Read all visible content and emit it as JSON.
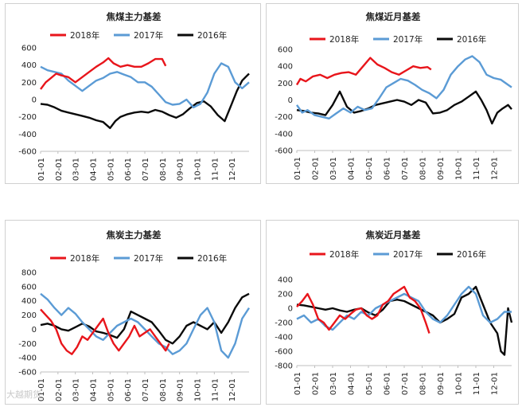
{
  "colors": {
    "s2018": "#e8151b",
    "s2017": "#5b9bd5",
    "s2016": "#0a0a0a",
    "axis": "#bfbfbf"
  },
  "watermark": "大越期货",
  "chart_data": [
    {
      "type": "line",
      "title": "焦煤主力基差",
      "ylim": [
        -600,
        600
      ],
      "yticks": [
        "600",
        "400",
        "200",
        "0",
        "-200",
        "-400",
        "-600"
      ],
      "categories": [
        "01-01",
        "02-01",
        "03-01",
        "04-01",
        "05-01",
        "06-01",
        "07-01",
        "08-01",
        "09-01",
        "10-01",
        "11-01",
        "12-01"
      ],
      "legend": "top",
      "series": [
        {
          "name": "2018年",
          "x": [
            0,
            0.3,
            0.6,
            0.9,
            1.2,
            1.6,
            2.0,
            2.4,
            2.8,
            3.2,
            3.6,
            3.9,
            4.2,
            4.6,
            5.0,
            5.4,
            5.8,
            6.2,
            6.6,
            7.0,
            7.2
          ],
          "y": [
            120,
            200,
            250,
            300,
            280,
            260,
            200,
            260,
            320,
            380,
            430,
            480,
            420,
            380,
            400,
            380,
            380,
            420,
            470,
            470,
            390
          ]
        },
        {
          "name": "2017年",
          "x": [
            0,
            0.4,
            0.8,
            1.2,
            1.6,
            2.0,
            2.4,
            2.8,
            3.2,
            3.6,
            4.0,
            4.4,
            4.8,
            5.2,
            5.6,
            6.0,
            6.4,
            6.8,
            7.2,
            7.6,
            8.0,
            8.4,
            8.8,
            9.2,
            9.6,
            10.0,
            10.4,
            10.8,
            11.2,
            11.6,
            12.0
          ],
          "y": [
            380,
            340,
            320,
            300,
            220,
            160,
            100,
            160,
            220,
            250,
            300,
            320,
            290,
            260,
            200,
            200,
            150,
            60,
            -30,
            -60,
            -50,
            0,
            -90,
            -50,
            80,
            300,
            420,
            380,
            200,
            130,
            200
          ]
        },
        {
          "name": "2016年",
          "x": [
            0,
            0.4,
            0.8,
            1.2,
            1.6,
            2.0,
            2.4,
            2.8,
            3.2,
            3.6,
            4.0,
            4.3,
            4.6,
            5.0,
            5.4,
            5.8,
            6.2,
            6.6,
            7.0,
            7.4,
            7.8,
            8.2,
            8.6,
            9.0,
            9.4,
            9.8,
            10.2,
            10.6,
            11.0,
            11.3,
            11.6,
            11.8,
            12.0
          ],
          "y": [
            -50,
            -60,
            -90,
            -130,
            -150,
            -170,
            -190,
            -210,
            -240,
            -260,
            -330,
            -250,
            -200,
            -170,
            -150,
            -140,
            -150,
            -120,
            -140,
            -180,
            -210,
            -170,
            -100,
            -40,
            -20,
            -80,
            -180,
            -250,
            -50,
            100,
            220,
            260,
            300
          ]
        }
      ]
    },
    {
      "type": "line",
      "title": "焦煤近月基差",
      "ylim": [
        -600,
        600
      ],
      "yticks": [
        "600",
        "400",
        "200",
        "0",
        "-200",
        "-400",
        "-600"
      ],
      "categories": [
        "01-01",
        "02-01",
        "03-01",
        "04-01",
        "05-01",
        "06-01",
        "07-01",
        "08-01",
        "09-01",
        "10-01",
        "11-01",
        "12-01"
      ],
      "legend": "top",
      "series": [
        {
          "name": "2018年",
          "x": [
            0,
            0.2,
            0.5,
            0.9,
            1.3,
            1.7,
            2.1,
            2.5,
            2.9,
            3.3,
            3.7,
            4.1,
            4.5,
            4.9,
            5.3,
            5.7,
            6.1,
            6.5,
            6.9,
            7.3,
            7.5
          ],
          "y": [
            180,
            250,
            220,
            280,
            300,
            260,
            300,
            320,
            330,
            300,
            400,
            500,
            420,
            380,
            330,
            300,
            350,
            400,
            380,
            390,
            360
          ]
        },
        {
          "name": "2017年",
          "x": [
            0,
            0.3,
            0.6,
            1.0,
            1.4,
            1.8,
            2.2,
            2.6,
            3.0,
            3.4,
            3.8,
            4.2,
            4.6,
            5.0,
            5.4,
            5.8,
            6.2,
            6.6,
            7.0,
            7.4,
            7.8,
            8.2,
            8.6,
            9.0,
            9.4,
            9.8,
            10.2,
            10.6,
            11.0,
            11.4,
            11.8,
            12.0
          ],
          "y": [
            -60,
            -150,
            -120,
            -180,
            -200,
            -220,
            -160,
            -100,
            -150,
            -80,
            -120,
            -100,
            20,
            150,
            200,
            250,
            230,
            180,
            120,
            80,
            20,
            120,
            300,
            400,
            480,
            520,
            450,
            300,
            260,
            240,
            180,
            150
          ]
        },
        {
          "name": "2016年",
          "x": [
            0,
            0.4,
            0.8,
            1.2,
            1.6,
            2.0,
            2.4,
            2.8,
            3.2,
            3.6,
            4.0,
            4.4,
            4.8,
            5.2,
            5.6,
            6.0,
            6.4,
            6.8,
            7.2,
            7.6,
            8.0,
            8.4,
            8.8,
            9.2,
            9.6,
            10.0,
            10.3,
            10.6,
            10.9,
            11.2,
            11.5,
            11.8,
            12.0
          ],
          "y": [
            -120,
            -130,
            -150,
            -160,
            -180,
            -60,
            100,
            -80,
            -150,
            -130,
            -100,
            -60,
            -40,
            -20,
            0,
            -20,
            -60,
            0,
            -30,
            -160,
            -150,
            -120,
            -60,
            -20,
            40,
            100,
            0,
            -120,
            -280,
            -150,
            -100,
            -60,
            -110
          ]
        }
      ]
    },
    {
      "type": "line",
      "title": "焦炭主力基差",
      "ylim": [
        -600,
        800
      ],
      "yticks": [
        "800",
        "600",
        "400",
        "200",
        "0",
        "-200",
        "-400",
        "-600"
      ],
      "categories": [
        "01-01",
        "02-01",
        "03-01",
        "04-01",
        "05-01",
        "06-01",
        "07-01",
        "08-01",
        "09-01",
        "10-01",
        "11-01",
        "12-01"
      ],
      "legend": "top",
      "series": [
        {
          "name": "2018年",
          "x": [
            0,
            0.3,
            0.6,
            0.9,
            1.2,
            1.5,
            1.8,
            2.1,
            2.4,
            2.7,
            3.0,
            3.3,
            3.6,
            3.9,
            4.2,
            4.5,
            4.8,
            5.1,
            5.4,
            5.7,
            6.0,
            6.3,
            6.6,
            6.9,
            7.2,
            7.4
          ],
          "y": [
            280,
            200,
            120,
            0,
            -200,
            -300,
            -350,
            -250,
            -100,
            -150,
            -50,
            50,
            150,
            -50,
            -200,
            -300,
            -200,
            -100,
            50,
            -100,
            -50,
            0,
            -100,
            -200,
            -300,
            -200
          ]
        },
        {
          "name": "2017年",
          "x": [
            0,
            0.4,
            0.8,
            1.2,
            1.6,
            2.0,
            2.4,
            2.8,
            3.2,
            3.6,
            4.0,
            4.4,
            4.8,
            5.2,
            5.6,
            6.0,
            6.4,
            6.8,
            7.2,
            7.6,
            8.0,
            8.4,
            8.8,
            9.2,
            9.6,
            10.0,
            10.4,
            10.8,
            11.2,
            11.6,
            12.0
          ],
          "y": [
            500,
            420,
            300,
            200,
            300,
            220,
            100,
            0,
            -100,
            -150,
            -50,
            50,
            100,
            150,
            100,
            0,
            -100,
            -200,
            -250,
            -350,
            -300,
            -200,
            0,
            200,
            300,
            100,
            -300,
            -400,
            -200,
            150,
            300
          ]
        },
        {
          "name": "2016年",
          "x": [
            0,
            0.4,
            0.8,
            1.2,
            1.6,
            2.0,
            2.4,
            2.8,
            3.2,
            3.6,
            4.0,
            4.4,
            4.8,
            5.2,
            5.6,
            6.0,
            6.4,
            6.8,
            7.2,
            7.6,
            8.0,
            8.4,
            8.8,
            9.2,
            9.6,
            10.0,
            10.4,
            10.8,
            11.2,
            11.6,
            12.0
          ],
          "y": [
            60,
            80,
            50,
            0,
            -20,
            30,
            80,
            40,
            -30,
            -50,
            -80,
            -120,
            0,
            250,
            200,
            150,
            100,
            -20,
            -150,
            -200,
            -100,
            50,
            100,
            50,
            0,
            100,
            -50,
            100,
            300,
            450,
            500
          ]
        }
      ]
    },
    {
      "type": "line",
      "title": "焦炭近月基差",
      "ylim": [
        -800,
        400
      ],
      "yticks": [
        "400",
        "200",
        "0",
        "-200",
        "-400",
        "-600",
        "-800"
      ],
      "categories": [
        "01-01",
        "02-01",
        "03-01",
        "04-01",
        "05-01",
        "06-01",
        "07-01",
        "08-01",
        "09-01",
        "10-01",
        "11-01",
        "12-01"
      ],
      "legend": "top",
      "series": [
        {
          "name": "2018年",
          "x": [
            0,
            0.3,
            0.6,
            0.9,
            1.2,
            1.5,
            1.8,
            2.1,
            2.4,
            2.7,
            3.0,
            3.3,
            3.6,
            3.9,
            4.2,
            4.5,
            4.8,
            5.1,
            5.4,
            5.7,
            6.0,
            6.3,
            6.6,
            6.9,
            7.2,
            7.4
          ],
          "y": [
            20,
            100,
            200,
            50,
            -150,
            -200,
            -300,
            -200,
            -100,
            -150,
            -80,
            -20,
            0,
            -100,
            -150,
            -100,
            50,
            100,
            200,
            250,
            300,
            150,
            100,
            0,
            -200,
            -350
          ]
        },
        {
          "name": "2017年",
          "x": [
            0,
            0.4,
            0.8,
            1.2,
            1.6,
            2.0,
            2.4,
            2.8,
            3.2,
            3.6,
            4.0,
            4.4,
            4.8,
            5.2,
            5.6,
            6.0,
            6.4,
            6.8,
            7.2,
            7.6,
            8.0,
            8.4,
            8.8,
            9.2,
            9.6,
            10.0,
            10.4,
            10.8,
            11.2,
            11.6,
            12.0
          ],
          "y": [
            -150,
            -100,
            -200,
            -150,
            -250,
            -300,
            -200,
            -100,
            -150,
            -50,
            -100,
            0,
            50,
            100,
            150,
            200,
            150,
            100,
            -50,
            -150,
            -200,
            -100,
            50,
            200,
            300,
            200,
            -100,
            -200,
            -150,
            -50,
            -50
          ]
        },
        {
          "name": "2016年",
          "x": [
            0,
            0.4,
            0.8,
            1.2,
            1.6,
            2.0,
            2.4,
            2.8,
            3.2,
            3.6,
            4.0,
            4.4,
            4.8,
            5.2,
            5.6,
            6.0,
            6.4,
            6.8,
            7.2,
            7.6,
            8.0,
            8.4,
            8.8,
            9.2,
            9.6,
            10.0,
            10.4,
            10.8,
            11.2,
            11.4,
            11.6,
            11.8,
            12.0
          ],
          "y": [
            50,
            40,
            20,
            0,
            -20,
            0,
            -30,
            -50,
            -20,
            0,
            -60,
            -100,
            -20,
            100,
            120,
            100,
            50,
            0,
            -50,
            -100,
            -200,
            -150,
            -80,
            150,
            200,
            300,
            50,
            -200,
            -350,
            -600,
            -650,
            0,
            -200
          ]
        }
      ]
    }
  ]
}
